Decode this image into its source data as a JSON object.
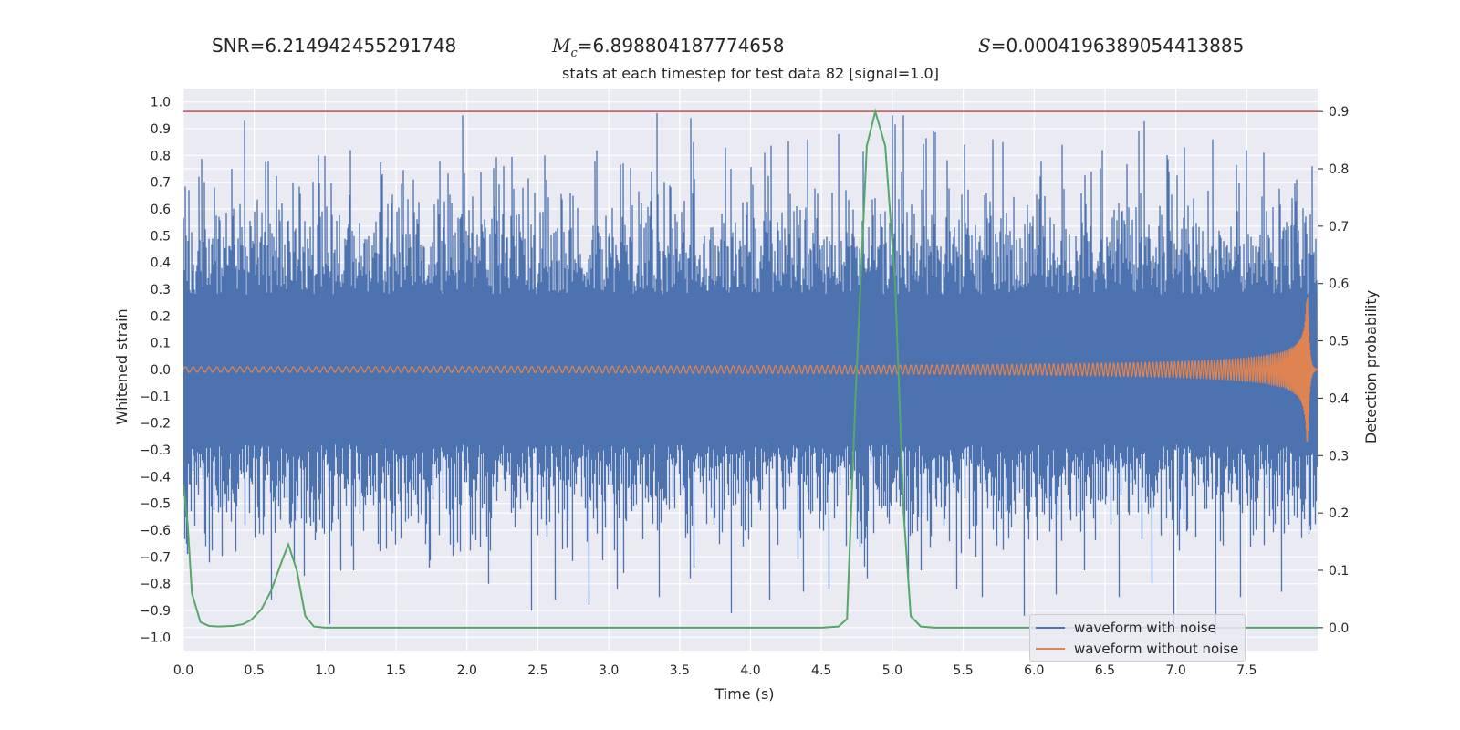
{
  "header": {
    "snr_label": "SNR",
    "snr_value": "6.214942455291748",
    "mc_var": "M",
    "mc_sub": "c",
    "mc_value": "6.898804187774658",
    "s_var": "S",
    "s_value": "0.0004196389054413885"
  },
  "chart_data": {
    "type": "line",
    "title": "stats at each timestep for test data 82 [signal=1.0]",
    "xlabel": "Time (s)",
    "ylabel_left": "Whitened strain",
    "ylabel_right": "Detection probability",
    "xlim": [
      0.0,
      8.0
    ],
    "ylim_left": [
      -1.05,
      1.05
    ],
    "ylim_right": [
      -0.04,
      0.94
    ],
    "x_ticks": [
      "0.0",
      "0.5",
      "1.0",
      "1.5",
      "2.0",
      "2.5",
      "3.0",
      "3.5",
      "4.0",
      "4.5",
      "5.0",
      "5.5",
      "6.0",
      "6.5",
      "7.0",
      "7.5"
    ],
    "y_left_ticks": [
      "1.0",
      "0.9",
      "0.8",
      "0.7",
      "0.6",
      "0.5",
      "0.4",
      "0.3",
      "0.2",
      "0.1",
      "0.0",
      "-0.1",
      "-0.2",
      "-0.3",
      "-0.4",
      "-0.5",
      "-0.6",
      "-0.7",
      "-0.8",
      "-0.9",
      "-1.0"
    ],
    "y_right_ticks": [
      "0.9",
      "0.8",
      "0.7",
      "0.6",
      "0.5",
      "0.4",
      "0.3",
      "0.2",
      "0.1",
      "0.0"
    ],
    "threshold": {
      "axis": "right",
      "value": 0.9,
      "color": "#c44e52"
    },
    "grid": true,
    "legend_position": "lower-right",
    "series": [
      {
        "name": "waveform with noise",
        "axis": "left",
        "color": "#4c72b0",
        "description": "dense noisy whitened strain, spikes mostly within ±0.9",
        "upper_spikes": [
          [
            0.02,
            0.5
          ],
          [
            0.11,
            0.72
          ],
          [
            0.22,
            0.68
          ],
          [
            0.34,
            0.75
          ],
          [
            0.43,
            0.93
          ],
          [
            0.6,
            0.78
          ],
          [
            0.77,
            0.7
          ],
          [
            0.95,
            0.8
          ],
          [
            1.18,
            0.82
          ],
          [
            1.4,
            0.73
          ],
          [
            1.62,
            0.71
          ],
          [
            1.81,
            0.78
          ],
          [
            1.97,
            0.95
          ],
          [
            2.26,
            0.76
          ],
          [
            2.55,
            0.8
          ],
          [
            2.9,
            0.78
          ],
          [
            3.1,
            0.77
          ],
          [
            3.3,
            0.74
          ],
          [
            3.6,
            0.85
          ],
          [
            3.86,
            0.75
          ],
          [
            4.1,
            0.81
          ],
          [
            4.4,
            0.86
          ],
          [
            4.62,
            0.88
          ],
          [
            5.0,
            0.95
          ],
          [
            5.08,
            0.95
          ],
          [
            5.29,
            0.89
          ],
          [
            5.51,
            0.84
          ],
          [
            5.78,
            0.85
          ],
          [
            6.05,
            0.78
          ],
          [
            6.2,
            0.84
          ],
          [
            6.48,
            0.82
          ],
          [
            6.74,
            0.89
          ],
          [
            7.06,
            0.83
          ],
          [
            7.26,
            0.86
          ],
          [
            7.5,
            0.82
          ],
          [
            7.62,
            0.81
          ],
          [
            7.85,
            0.71
          ],
          [
            7.95,
            0.58
          ]
        ],
        "lower_spikes": [
          [
            0.02,
            -0.65
          ],
          [
            0.18,
            -0.72
          ],
          [
            0.37,
            -0.68
          ],
          [
            0.62,
            -0.86
          ],
          [
            0.78,
            -0.72
          ],
          [
            1.03,
            -0.95
          ],
          [
            1.2,
            -0.75
          ],
          [
            1.43,
            -0.67
          ],
          [
            1.73,
            -0.74
          ],
          [
            1.95,
            -0.68
          ],
          [
            2.15,
            -0.8
          ],
          [
            2.45,
            -0.9
          ],
          [
            2.62,
            -0.86
          ],
          [
            2.86,
            -0.88
          ],
          [
            3.1,
            -0.76
          ],
          [
            3.35,
            -0.85
          ],
          [
            3.57,
            -0.78
          ],
          [
            3.86,
            -0.91
          ],
          [
            4.13,
            -0.86
          ],
          [
            4.37,
            -0.83
          ],
          [
            4.55,
            -0.82
          ],
          [
            4.82,
            -0.78
          ],
          [
            5.2,
            -0.75
          ],
          [
            5.45,
            -0.82
          ],
          [
            5.63,
            -0.85
          ],
          [
            5.93,
            -0.92
          ],
          [
            6.15,
            -0.84
          ],
          [
            6.35,
            -0.75
          ],
          [
            6.6,
            -0.85
          ],
          [
            6.83,
            -0.8
          ],
          [
            6.98,
            -0.96
          ],
          [
            7.28,
            -0.99
          ],
          [
            7.45,
            -0.85
          ],
          [
            7.74,
            -0.83
          ],
          [
            7.95,
            -0.6
          ]
        ],
        "band": {
          "typical_upper": 0.55,
          "typical_lower": -0.5,
          "dense_core": 0.28
        }
      },
      {
        "name": "waveform without noise",
        "axis": "left",
        "color": "#dd8452",
        "description": "chirp: amplitude grows toward merger near t=7.93 s",
        "t_merger": 7.93,
        "amplitude_start": 0.01,
        "amplitude_peak": 0.27,
        "f_start_hz": 18,
        "f_end_hz": 250
      },
      {
        "name": "",
        "axis": "right",
        "color": "#55a868",
        "x": [
          0.0,
          0.03,
          0.06,
          0.12,
          0.18,
          0.25,
          0.35,
          0.42,
          0.48,
          0.55,
          0.62,
          0.7,
          0.74,
          0.8,
          0.86,
          0.92,
          1.0,
          2.0,
          3.0,
          4.0,
          4.5,
          4.62,
          4.68,
          4.74,
          4.82,
          4.88,
          4.95,
          5.02,
          5.08,
          5.13,
          5.2,
          5.3,
          6.0,
          7.0,
          8.0
        ],
        "y": [
          0.25,
          0.18,
          0.06,
          0.01,
          0.003,
          0.002,
          0.003,
          0.006,
          0.014,
          0.032,
          0.065,
          0.12,
          0.145,
          0.1,
          0.02,
          0.002,
          0.0,
          0.0,
          0.0,
          0.0,
          0.0,
          0.002,
          0.015,
          0.4,
          0.84,
          0.9,
          0.84,
          0.6,
          0.2,
          0.02,
          0.002,
          0.0,
          0.0,
          0.0,
          0.0
        ]
      }
    ]
  }
}
